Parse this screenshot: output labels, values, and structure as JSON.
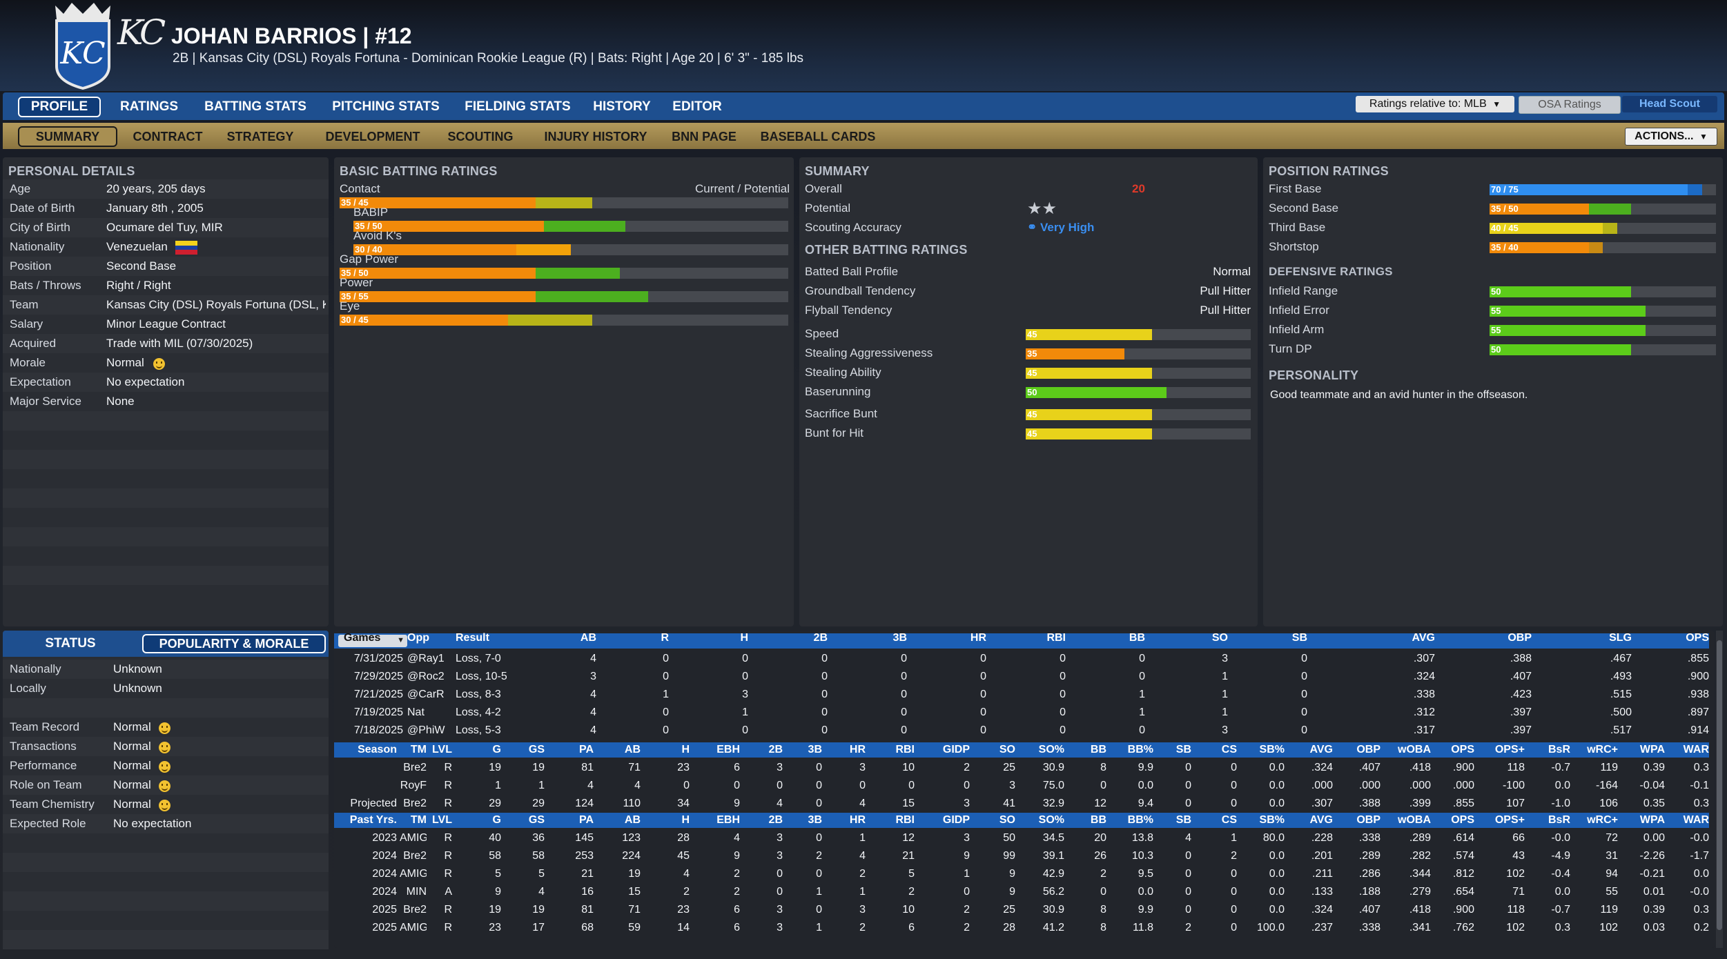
{
  "header": {
    "name_line": "JOHAN BARRIOS  |  #12",
    "sub_line": "2B | Kansas City (DSL) Royals Fortuna - Dominican Rookie League (R)  |  Bats: Right  |  Age 20  |  6' 3\" - 185 lbs",
    "logo_text": "KC",
    "logo_mark": "KC"
  },
  "nav": {
    "main_tabs": [
      "PROFILE",
      "RATINGS",
      "BATTING STATS",
      "PITCHING STATS",
      "FIELDING STATS",
      "HISTORY",
      "EDITOR"
    ],
    "sub_tabs": [
      "SUMMARY",
      "CONTRACT",
      "STRATEGY",
      "DEVELOPMENT",
      "SCOUTING",
      "INJURY HISTORY",
      "BNN PAGE",
      "BASEBALL CARDS"
    ],
    "ratings_relative": "Ratings relative to: MLB",
    "osa_ratings": "OSA Ratings",
    "head_scout": "Head Scout",
    "actions": "ACTIONS..."
  },
  "personal": {
    "title": "PERSONAL DETAILS",
    "rows": [
      {
        "label": "Age",
        "value": "20 years, 205 days"
      },
      {
        "label": "Date of Birth",
        "value": "January 8th , 2005"
      },
      {
        "label": "City of Birth",
        "value": "Ocumare del Tuy, MIR"
      },
      {
        "label": "Nationality",
        "value": "Venezuelan"
      },
      {
        "label": "Position",
        "value": "Second Base"
      },
      {
        "label": "Bats / Throws",
        "value": "Right / Right"
      },
      {
        "label": "Team",
        "value": "Kansas City (DSL) Royals Fortuna (DSL, KC"
      },
      {
        "label": "Salary",
        "value": "Minor League Contract"
      },
      {
        "label": "Acquired",
        "value": "Trade with MIL (07/30/2025)"
      },
      {
        "label": "Morale",
        "value": "Normal"
      },
      {
        "label": "Expectation",
        "value": "No expectation"
      },
      {
        "label": "Major Service",
        "value": "None"
      }
    ]
  },
  "batting": {
    "title": "BASIC BATTING RATINGS",
    "header_right": "Current / Potential",
    "ratings": [
      {
        "label": "Contact",
        "text": "35 / 45",
        "current": 35,
        "potential": 45,
        "pot_color": "#b8b418"
      },
      {
        "label": "BABIP",
        "text": "35 / 50",
        "current": 35,
        "potential": 50,
        "pot_color": "#4caf1f"
      },
      {
        "label": "Avoid K's",
        "text": "30 / 40",
        "current": 30,
        "potential": 40,
        "pot_color": "#f2a20a"
      },
      {
        "label": "Gap Power",
        "text": "35 / 50",
        "current": 35,
        "potential": 50,
        "pot_color": "#4caf1f"
      },
      {
        "label": "Power",
        "text": "35 / 55",
        "current": 35,
        "potential": 55,
        "pot_color": "#4caf1f"
      },
      {
        "label": "Eye",
        "text": "30 / 45",
        "current": 30,
        "potential": 45,
        "pot_color": "#b8b418"
      }
    ]
  },
  "summary": {
    "title": "SUMMARY",
    "overall_label": "Overall",
    "overall_value": "20",
    "potential_label": "Potential",
    "potential_stars": 2,
    "scouting_label": "Scouting Accuracy",
    "scouting_value": "Very High",
    "other_title": "OTHER BATTING RATINGS",
    "other": [
      {
        "label": "Batted Ball Profile",
        "value": "Normal"
      },
      {
        "label": "Groundball Tendency",
        "value": "Pull Hitter"
      },
      {
        "label": "Flyball Tendency",
        "value": "Pull Hitter"
      }
    ],
    "speed": [
      {
        "label": "Speed",
        "text": "45",
        "value": 45,
        "color": "#e8d21a"
      },
      {
        "label": "Stealing Aggressiveness",
        "text": "35",
        "value": 35,
        "color": "#f28a0a"
      },
      {
        "label": "Stealing Ability",
        "text": "45",
        "value": 45,
        "color": "#e8d21a"
      },
      {
        "label": "Baserunning",
        "text": "50",
        "value": 50,
        "color": "#5ccc1a"
      },
      {
        "label": "Sacrifice Bunt",
        "text": "45",
        "value": 45,
        "color": "#e8d21a"
      },
      {
        "label": "Bunt for Hit",
        "text": "45",
        "value": 45,
        "color": "#e8d21a"
      }
    ]
  },
  "position": {
    "title": "POSITION RATINGS",
    "ratings": [
      {
        "label": "First Base",
        "text": "70 / 75",
        "current": 70,
        "potential": 75,
        "cur_color": "#2f8ef0",
        "pot_color": "#1c6bc6"
      },
      {
        "label": "Second Base",
        "text": "35 / 50",
        "current": 35,
        "potential": 50,
        "cur_color": "#f28a0a",
        "pot_color": "#4caf1f"
      },
      {
        "label": "Third Base",
        "text": "40 / 45",
        "current": 40,
        "potential": 45,
        "cur_color": "#e8d21a",
        "pot_color": "#b8b418"
      },
      {
        "label": "Shortstop",
        "text": "35 / 40",
        "current": 35,
        "potential": 40,
        "cur_color": "#f28a0a",
        "pot_color": "#c98a14"
      }
    ],
    "def_title": "DEFENSIVE RATINGS",
    "defensive": [
      {
        "label": "Infield Range",
        "text": "50",
        "value": 50,
        "color": "#5ccc1a"
      },
      {
        "label": "Infield Error",
        "text": "55",
        "value": 55,
        "color": "#5ccc1a"
      },
      {
        "label": "Infield Arm",
        "text": "55",
        "value": 55,
        "color": "#5ccc1a"
      },
      {
        "label": "Turn DP",
        "text": "50",
        "value": 50,
        "color": "#5ccc1a"
      }
    ],
    "personality_title": "PERSONALITY",
    "personality_text": "Good teammate and an avid hunter in the offseason."
  },
  "status": {
    "tab_status": "STATUS",
    "tab_popularity": "POPULARITY & MORALE",
    "popularity": [
      {
        "label": "Nationally",
        "value": "Unknown"
      },
      {
        "label": "Locally",
        "value": "Unknown"
      }
    ],
    "morale": [
      {
        "label": "Team Record",
        "value": "Normal",
        "smile": true
      },
      {
        "label": "Transactions",
        "value": "Normal",
        "smile": true
      },
      {
        "label": "Performance",
        "value": "Normal",
        "smile": true
      },
      {
        "label": "Role on Team",
        "value": "Normal",
        "smile": true
      },
      {
        "label": "Team Chemistry",
        "value": "Normal",
        "smile": true
      },
      {
        "label": "Expected Role",
        "value": "No expectation",
        "smile": false
      }
    ]
  },
  "games": {
    "headers": [
      "Games",
      "Opp",
      "Result",
      "AB",
      "R",
      "H",
      "2B",
      "3B",
      "HR",
      "RBI",
      "BB",
      "SO",
      "SB",
      "AVG",
      "OBP",
      "SLG",
      "OPS"
    ],
    "rows": [
      [
        "7/31/2025",
        "@Ray1",
        "Loss, 7-0",
        "4",
        "0",
        "0",
        "0",
        "0",
        "0",
        "0",
        "0",
        "3",
        "0",
        ".307",
        ".388",
        ".467",
        ".855"
      ],
      [
        "7/29/2025",
        "@Roc2",
        "Loss, 10-5",
        "3",
        "0",
        "0",
        "0",
        "0",
        "0",
        "0",
        "0",
        "1",
        "0",
        ".324",
        ".407",
        ".493",
        ".900"
      ],
      [
        "7/21/2025",
        "@CarR",
        "Loss, 8-3",
        "4",
        "1",
        "3",
        "0",
        "0",
        "0",
        "0",
        "1",
        "1",
        "0",
        ".338",
        ".423",
        ".515",
        ".938"
      ],
      [
        "7/19/2025",
        "Nat",
        "Loss, 4-2",
        "4",
        "0",
        "1",
        "0",
        "0",
        "0",
        "0",
        "1",
        "1",
        "0",
        ".312",
        ".397",
        ".500",
        ".897"
      ],
      [
        "7/18/2025",
        "@PhiW",
        "Loss, 5-3",
        "4",
        "0",
        "0",
        "0",
        "0",
        "0",
        "0",
        "0",
        "3",
        "0",
        ".317",
        ".397",
        ".517",
        ".914"
      ]
    ]
  },
  "season": {
    "headers": [
      "Season",
      "TM",
      "LVL",
      "G",
      "GS",
      "PA",
      "AB",
      "H",
      "EBH",
      "2B",
      "3B",
      "HR",
      "RBI",
      "GIDP",
      "SO",
      "SO%",
      "BB",
      "BB%",
      "SB",
      "CS",
      "SB%",
      "AVG",
      "OBP",
      "wOBA",
      "OPS",
      "OPS+",
      "BsR",
      "wRC+",
      "WPA",
      "WAR"
    ],
    "rows": [
      [
        "",
        "Bre2",
        "R",
        "19",
        "19",
        "81",
        "71",
        "23",
        "6",
        "3",
        "0",
        "3",
        "10",
        "2",
        "25",
        "30.9",
        "8",
        "9.9",
        "0",
        "0",
        "0.0",
        ".324",
        ".407",
        ".418",
        ".900",
        "118",
        "-0.7",
        "119",
        "0.39",
        "0.3"
      ],
      [
        "",
        "RoyF",
        "R",
        "1",
        "1",
        "4",
        "4",
        "0",
        "0",
        "0",
        "0",
        "0",
        "0",
        "0",
        "3",
        "75.0",
        "0",
        "0.0",
        "0",
        "0",
        "0.0",
        ".000",
        ".000",
        ".000",
        ".000",
        "-100",
        "0.0",
        "-164",
        "-0.04",
        "-0.1"
      ],
      [
        "Projected",
        "Bre2",
        "R",
        "29",
        "29",
        "124",
        "110",
        "34",
        "9",
        "4",
        "0",
        "4",
        "15",
        "3",
        "41",
        "32.9",
        "12",
        "9.4",
        "0",
        "0",
        "0.0",
        ".307",
        ".388",
        ".399",
        ".855",
        "107",
        "-1.0",
        "106",
        "0.35",
        "0.3"
      ]
    ]
  },
  "past": {
    "headers": [
      "Past Yrs.",
      "TM",
      "LVL",
      "G",
      "GS",
      "PA",
      "AB",
      "H",
      "EBH",
      "2B",
      "3B",
      "HR",
      "RBI",
      "GIDP",
      "SO",
      "SO%",
      "BB",
      "BB%",
      "SB",
      "CS",
      "SB%",
      "AVG",
      "OBP",
      "wOBA",
      "OPS",
      "OPS+",
      "BsR",
      "wRC+",
      "WPA",
      "WAR"
    ],
    "rows": [
      [
        "2023",
        "AMIG",
        "R",
        "40",
        "36",
        "145",
        "123",
        "28",
        "4",
        "3",
        "0",
        "1",
        "12",
        "3",
        "50",
        "34.5",
        "20",
        "13.8",
        "4",
        "1",
        "80.0",
        ".228",
        ".338",
        ".289",
        ".614",
        "66",
        "-0.0",
        "72",
        "0.00",
        "-0.0"
      ],
      [
        "2024",
        "Bre2",
        "R",
        "58",
        "58",
        "253",
        "224",
        "45",
        "9",
        "3",
        "2",
        "4",
        "21",
        "9",
        "99",
        "39.1",
        "26",
        "10.3",
        "0",
        "2",
        "0.0",
        ".201",
        ".289",
        ".282",
        ".574",
        "43",
        "-4.9",
        "31",
        "-2.26",
        "-1.7"
      ],
      [
        "2024",
        "AMIG",
        "R",
        "5",
        "5",
        "21",
        "19",
        "4",
        "2",
        "0",
        "0",
        "2",
        "5",
        "1",
        "9",
        "42.9",
        "2",
        "9.5",
        "0",
        "0",
        "0.0",
        ".211",
        ".286",
        ".344",
        ".812",
        "102",
        "-0.4",
        "94",
        "-0.21",
        "0.0"
      ],
      [
        "2024",
        "MIN",
        "A",
        "9",
        "4",
        "16",
        "15",
        "2",
        "2",
        "0",
        "1",
        "1",
        "2",
        "0",
        "9",
        "56.2",
        "0",
        "0.0",
        "0",
        "0",
        "0.0",
        ".133",
        ".188",
        ".279",
        ".654",
        "71",
        "0.0",
        "55",
        "0.01",
        "-0.0"
      ],
      [
        "2025",
        "Bre2",
        "R",
        "19",
        "19",
        "81",
        "71",
        "23",
        "6",
        "3",
        "0",
        "3",
        "10",
        "2",
        "25",
        "30.9",
        "8",
        "9.9",
        "0",
        "0",
        "0.0",
        ".324",
        ".407",
        ".418",
        ".900",
        "118",
        "-0.7",
        "119",
        "0.39",
        "0.3"
      ],
      [
        "2025",
        "AMIG",
        "R",
        "23",
        "17",
        "68",
        "59",
        "14",
        "6",
        "3",
        "1",
        "2",
        "6",
        "2",
        "28",
        "41.2",
        "8",
        "11.8",
        "2",
        "0",
        "100.0",
        ".237",
        ".338",
        ".341",
        ".762",
        "102",
        "0.3",
        "102",
        "0.03",
        "0.2"
      ]
    ]
  },
  "colors": {
    "accent_blue": "#1e4f8f",
    "header_blue": "#1c5fb5",
    "gold": "#b49a5c",
    "overall_red": "#e03a2a",
    "scout_blue": "#3a8ef0"
  }
}
